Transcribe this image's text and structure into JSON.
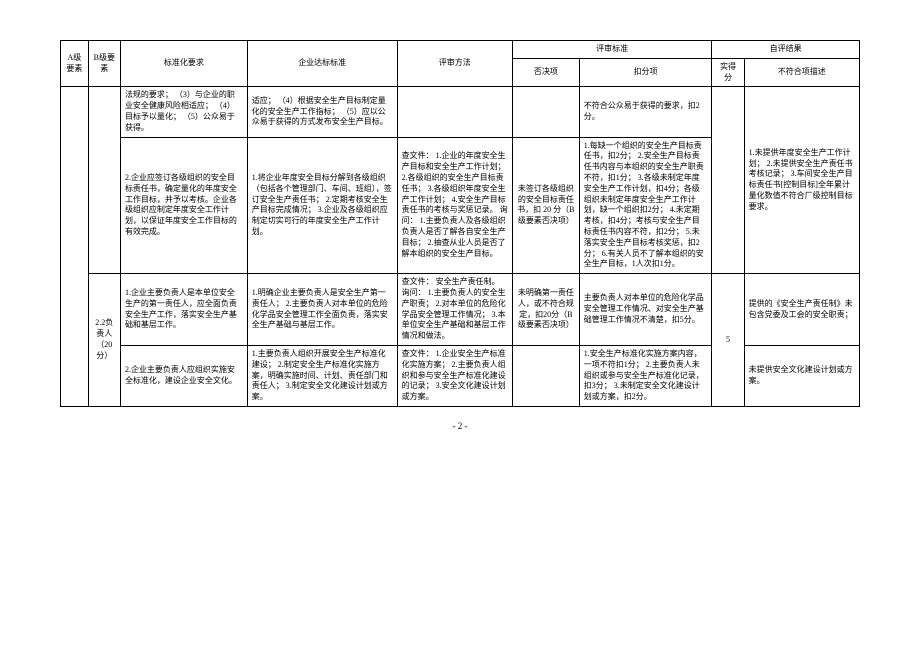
{
  "header": {
    "a": "A级要素",
    "b": "B级要素",
    "c": "标准化要求",
    "d": "企业达标标准",
    "e": "评审方法",
    "f_group": "评审标准",
    "f": "否决项",
    "g": "扣分项",
    "h_group": "自评结果",
    "h": "实得分",
    "i": "不符合项描述"
  },
  "rows": [
    {
      "a": "",
      "b": "",
      "c": "法规的要求；\n（3）与企业的职业安全健康风险相适应；\n（4）目标予以量化；\n（5）公众易于获得。",
      "d": "适应；\n（4）根据安全生产目标制定量化的安全生产工作指标；\n（5）应以公众易于获得的方式发布安全生产目标。",
      "e": "",
      "f": "",
      "g": "不符合公众易于获得的要求，扣2分。",
      "h": "",
      "i": ""
    },
    {
      "c": "2.企业应签订各级组织的安全目标责任书，确定量化的年度安全工作目标，并予以考核。企业各级组织应制定年度安全工作计划，以保证年度安全工作目标的有效完成。",
      "d": "1.将企业年度安全目标分解到各级组织（包括各个管理部门、车间、班组），签订安全生产责任书；\n2.定期考核安全生产目标完成情况；\n3.企业及各级组织应制定切实可行的年度安全生产工作计划。",
      "e": "查文件：\n1.企业的年度安全生产目标和安全生产工作计划；\n2.各级组织的安全生产目标责任书；\n3.各级组织年度安全生产工作计划；\n4.安全生产目标责任书的考核与奖惩记录。\n询问：\n1.主要负责人及各级组织负责人是否了解各自安全生产目标；\n2.抽查从业人员是否了解本组织的安全生产目标。",
      "f": "未签订各级组织的安全目标责任书，扣 20 分（B级要素否决项）",
      "g": "1.每缺一个组织的安全生产目标责任书，扣2分；\n2.安全生产目标责任书内容与本组织的安全生产职责不符，扣1分；\n3.各级未制定年度安全生产工作计划，扣4分；各级组织未制定年度安全生产工作计划，缺一个组织扣2分；\n4.未定期考核，扣4分；考核与安全生产目标责任书内容不符，扣2分；\n5.未落实安全生产目标考核奖惩，扣2分；\n6.有关人员不了解本组织的安全生产目标，1人次扣1分。",
      "i": "1.未提供年度安全生产工作计划；\n2.未提供安全生产责任书考核记录；\n3.车间安全生产目标责任书[控制目标]全年累计量化数值不符合厂级控制目标要求。"
    },
    {
      "b": "2.2负责人（20分）",
      "c": "1.企业主要负责人是本单位安全生产的第一责任人，应全面负责安全生产工作，落实安全生产基础和基层工作。",
      "d": "1.明确企业主要负责人是安全生产第一责任人；\n2.主要负责人对本单位的危险化学品安全管理工作全面负责，落实安全生产基础与基层工作。",
      "e": "查文件：\n安全生产责任制。\n询问：\n1.主要负责人的安全生产职责；\n2.对本单位的危险化学品安全管理工作情况；\n3.本单位安全生产基础和基层工作情况和做法。",
      "f": "未明确第一责任人，或不符合规定，扣20分（B级要素否决项）",
      "g": "主要负责人对本单位的危险化学品安全管理工作情况、对安全生产基础管理工作情况不清楚，扣5分。",
      "h": "5",
      "i": "提供的《安全生产责任制》未包含党委及工会的安全职责；"
    },
    {
      "c": "2.企业主要负责人应组织实施安全标准化，建设企业安全文化。",
      "d": "1.主要负责人组织开展安全生产标准化建设；\n2.制定安全生产标准化实施方案，明确实施时间、计划、责任部门和责任人；\n3.制定安全文化建设计划或方案。",
      "e": "查文件：\n1.企业安全生产标准化实施方案；\n2.主要负责人组织和参与安全生产标准化建设的记录；\n3.安全文化建设计划或方案。",
      "f": "",
      "g": "1.安全生产标准化实施方案内容，一项不符扣1分；\n2.主要负责人未组织或参与安全生产标准化记录，扣3分；\n3.未制定安全文化建设计划或方案，扣2分。",
      "i": "未提供安全文化建设计划或方案。"
    }
  ],
  "pagenum": "- 2 -"
}
